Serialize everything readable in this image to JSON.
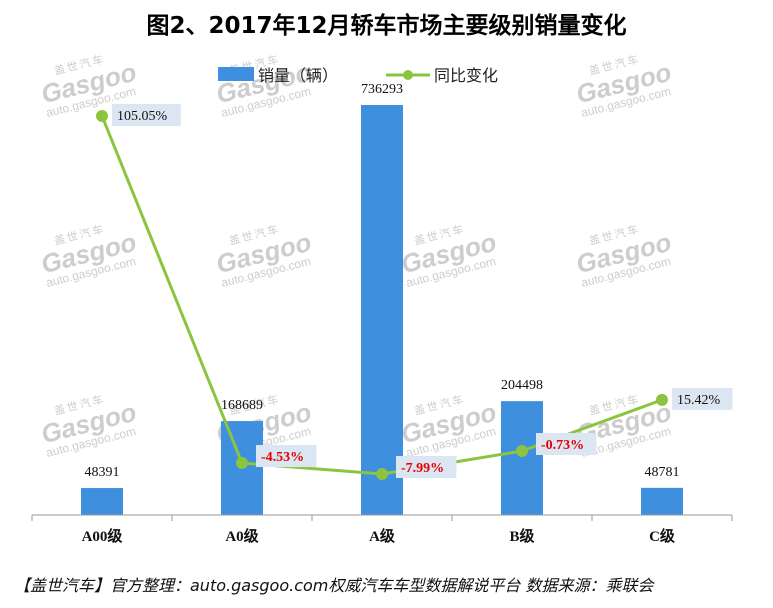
{
  "chart_data": {
    "type": "bar",
    "title": "图2、2017年12月轿车市场主要级别销量变化",
    "categories": [
      "A00级",
      "A0级",
      "A级",
      "B级",
      "C级"
    ],
    "series": [
      {
        "name": "销量（辆）",
        "type": "bar",
        "values": [
          48391,
          168689,
          736293,
          204498,
          48781
        ],
        "labels": [
          "48391",
          "168689",
          "736293",
          "204498",
          "48781"
        ]
      },
      {
        "name": "同比变化",
        "type": "line",
        "values": [
          105.05,
          -4.53,
          -7.99,
          -0.73,
          15.42
        ],
        "labels": [
          "105.05%",
          "-4.53%",
          "-7.99%",
          "-0.73%",
          "15.42%"
        ]
      }
    ],
    "legend_position": "top",
    "grid": false,
    "colors": {
      "bar": "#3e8fde",
      "line": "#8cc43f",
      "negative_label": "#e60000",
      "label_box": "#dce6f2"
    }
  },
  "watermark": {
    "cn": "盖世汽车",
    "logo": "Gasgoo",
    "url": "auto.gasgoo.com"
  },
  "footer": "【盖世汽车】官方整理：auto.gasgoo.com权威汽车车型数据解说平台  数据来源：乘联会"
}
